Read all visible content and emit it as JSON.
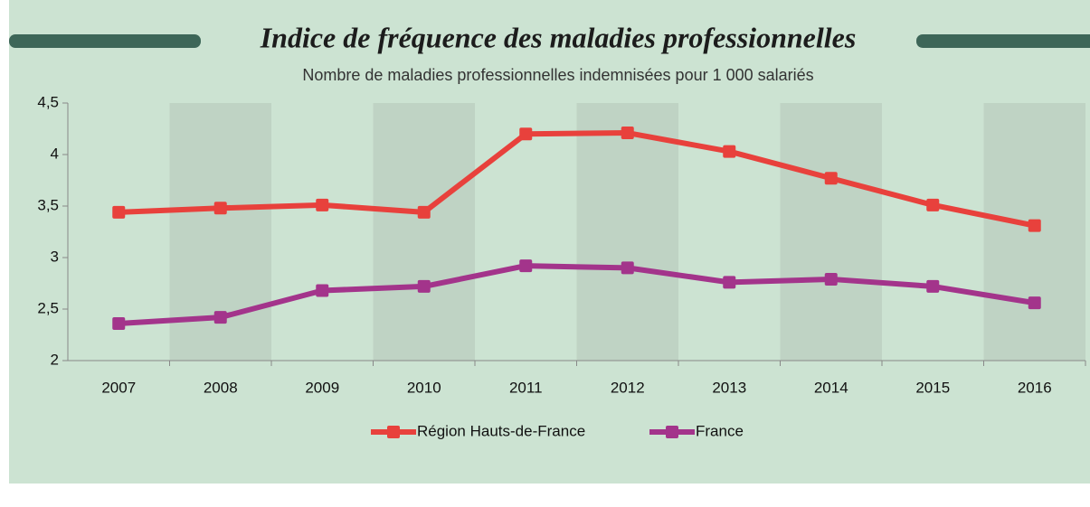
{
  "chart_data": {
    "type": "line",
    "title": "Indice de fréquence des maladies professionnelles",
    "subtitle": "Nombre de maladies professionnelles indemnisées pour 1 000 salariés",
    "categories": [
      "2007",
      "2008",
      "2009",
      "2010",
      "2011",
      "2012",
      "2013",
      "2014",
      "2015",
      "2016"
    ],
    "series": [
      {
        "name": "Région Hauts-de-France",
        "color": "#e8413c",
        "values": [
          3.44,
          3.48,
          3.51,
          3.44,
          4.2,
          4.21,
          4.03,
          3.77,
          3.51,
          3.31
        ]
      },
      {
        "name": "France",
        "color": "#a3348b",
        "values": [
          2.36,
          2.42,
          2.68,
          2.72,
          2.92,
          2.9,
          2.76,
          2.79,
          2.72,
          2.56
        ]
      }
    ],
    "ylim": [
      2,
      4.5
    ],
    "yticks": [
      2,
      {
        "value": 2.5,
        "label": "2,5"
      },
      3,
      {
        "value": 3.5,
        "label": "3,5"
      },
      4,
      {
        "value": 4.5,
        "label": "4,5"
      }
    ],
    "grid": false,
    "alternating_bands": true,
    "legend": "bottom"
  }
}
